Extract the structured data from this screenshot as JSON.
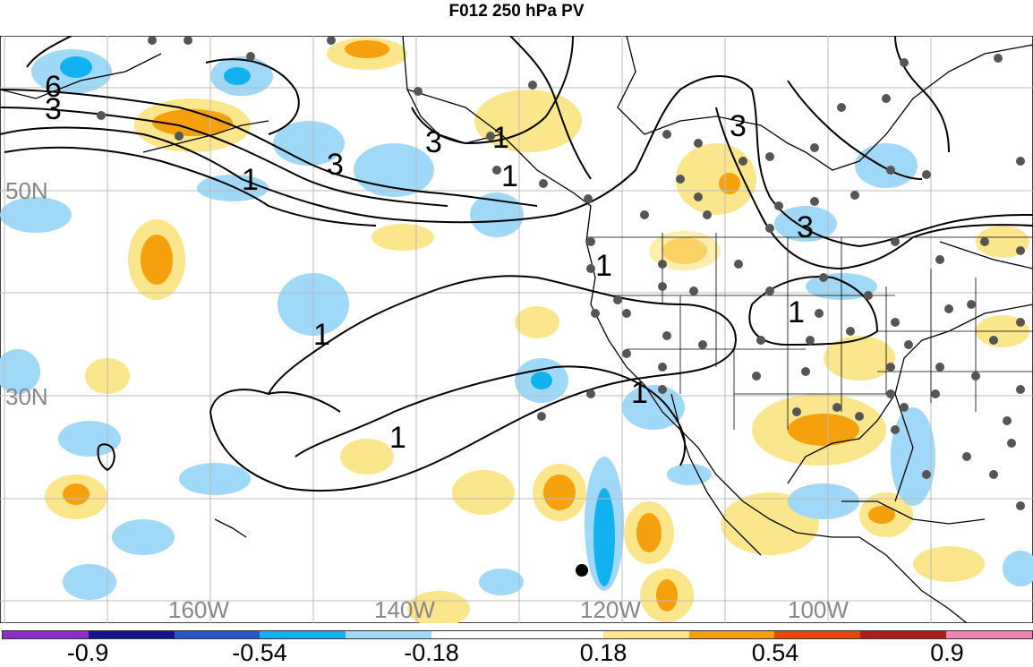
{
  "title": "F012 250 hPa PV",
  "map": {
    "lat_labels": [
      "50N",
      "30N"
    ],
    "lon_labels": [
      "160W",
      "140W",
      "120W",
      "100W"
    ],
    "contour_labels": [
      "6",
      "3",
      "3",
      "1",
      "3",
      "1",
      "1",
      "3",
      "1",
      "1",
      "1",
      "1",
      "3",
      "1"
    ]
  },
  "colorbar": {
    "colors": [
      "#8b2fc8",
      "#14148c",
      "#2858c8",
      "#12b2f0",
      "#a0d8f8",
      "#ffffff",
      "#ffffff",
      "#fce68c",
      "#f5a00c",
      "#e8460a",
      "#a81e1e",
      "#f082b4"
    ],
    "labels": [
      "-0.9",
      "-0.54",
      "-0.18",
      "0.18",
      "0.54",
      "0.9"
    ]
  }
}
